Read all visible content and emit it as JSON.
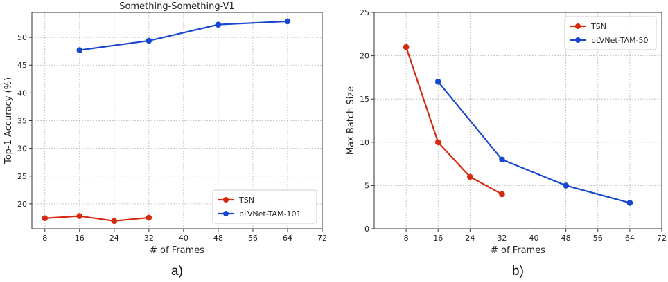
{
  "chart_data": [
    {
      "type": "line",
      "title": "Something-Something-V1",
      "xlabel": "# of Frames",
      "ylabel": "Top-1 Accuracy (%)",
      "caption": "a)",
      "xlim": [
        5,
        72
      ],
      "ylim": [
        15.5,
        54.5
      ],
      "xticks": [
        8,
        16,
        24,
        32,
        40,
        48,
        56,
        64,
        72
      ],
      "yticks": [
        20,
        25,
        30,
        35,
        40,
        45,
        50
      ],
      "grid": true,
      "legend": "bottom-right",
      "series": [
        {
          "name": "TSN",
          "color": "#d62a10",
          "x": [
            8,
            16,
            24,
            32
          ],
          "y": [
            17.4,
            17.8,
            16.9,
            17.5
          ]
        },
        {
          "name": "bLVNet-TAM-101",
          "color": "#1747cf",
          "x": [
            16,
            32,
            48,
            64
          ],
          "y": [
            47.7,
            49.4,
            52.3,
            52.9
          ]
        }
      ]
    },
    {
      "type": "line",
      "title": "",
      "xlabel": "# of Frames",
      "ylabel": "Max Batch Size",
      "caption": "b)",
      "xlim": [
        0,
        72
      ],
      "ylim": [
        0,
        25
      ],
      "xticks": [
        8,
        16,
        24,
        32,
        40,
        48,
        56,
        64,
        72
      ],
      "yticks": [
        0,
        5,
        10,
        15,
        20,
        25
      ],
      "grid": true,
      "legend": "top-right",
      "series": [
        {
          "name": "TSN",
          "color": "#d62a10",
          "x": [
            8,
            16,
            24,
            32
          ],
          "y": [
            21,
            10,
            6,
            4
          ]
        },
        {
          "name": "bLVNet-TAM-50",
          "color": "#1747cf",
          "x": [
            16,
            32,
            48,
            64
          ],
          "y": [
            17,
            8,
            5,
            3
          ]
        }
      ]
    }
  ]
}
